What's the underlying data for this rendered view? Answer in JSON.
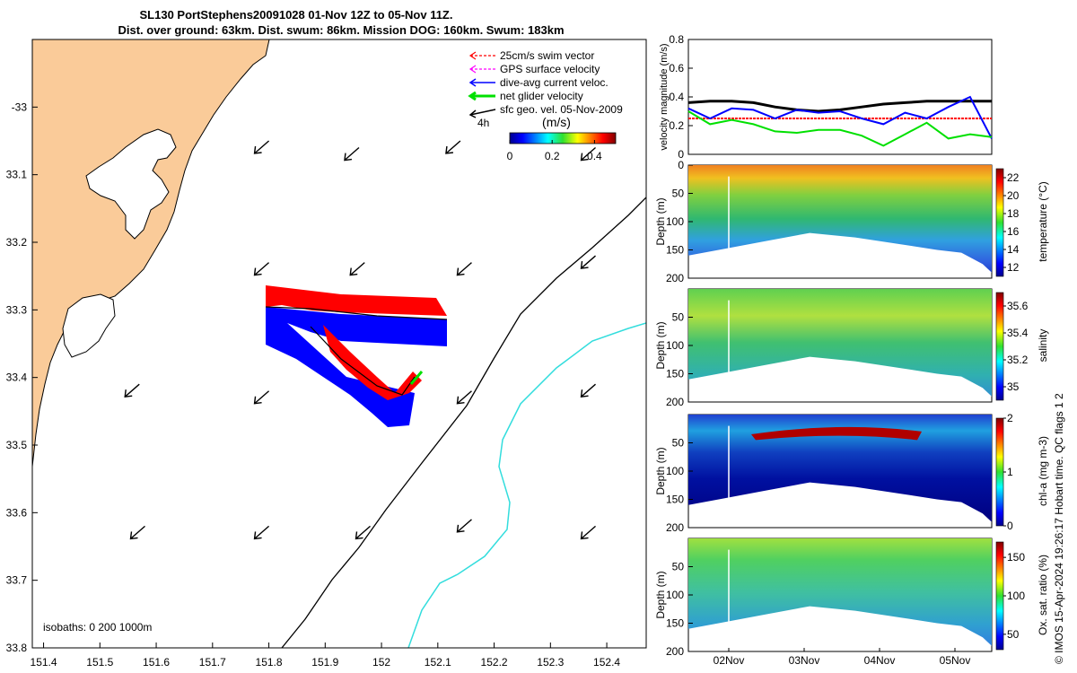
{
  "title": {
    "line1": "SL130 PortStephens20091028 01-Nov 12Z to 05-Nov 11Z.",
    "line2": "Dist. over ground: 63km. Dist. swum: 86km. Mission DOG: 160km. Swum: 183km"
  },
  "colors": {
    "land": "#FACB99",
    "swim_vector": "#ff0000",
    "gps_velocity": "#ff00ff",
    "dive_current": "#0000ff",
    "net_glider": "#00e000",
    "sfc_geo": "#000000",
    "isobath_200": "#000000",
    "isobath_1000": "#33dddd"
  },
  "chart_data": [
    {
      "type": "scatter",
      "name": "map",
      "xlabel": "",
      "ylabel": "",
      "xlim": [
        151.38,
        152.47
      ],
      "ylim": [
        -33.8,
        -32.9
      ],
      "x_ticks": [
        "151.4",
        "151.5",
        "151.6",
        "151.7",
        "151.8",
        "151.9",
        "152",
        "152.1",
        "152.2",
        "152.3",
        "152.4"
      ],
      "y_ticks": [
        "-33",
        "33.1",
        "33.2",
        "33.3",
        "33.4",
        "33.5",
        "33.6",
        "33.7",
        "33.8"
      ],
      "legend": {
        "placement": "top-right",
        "entries": [
          "25cm/s swim vector",
          "GPS surface velocity",
          "dive-avg current veloc.",
          "net glider velocity",
          "sfc geo. vel. 05-Nov-2009"
        ],
        "time_note": "4h"
      },
      "colorbar": {
        "label": "(m/s)",
        "ticks": [
          "0",
          "0.2",
          "0.4"
        ],
        "range": [
          0,
          0.5
        ]
      },
      "isobaths_label": "isobaths: 0   200  1000m",
      "surface_vectors": [
        {
          "lon": 151.8,
          "lat": -33.05
        },
        {
          "lon": 151.96,
          "lat": -33.06
        },
        {
          "lon": 152.14,
          "lat": -33.05
        },
        {
          "lon": 152.38,
          "lat": -33.06
        },
        {
          "lon": 151.8,
          "lat": -33.23
        },
        {
          "lon": 151.97,
          "lat": -33.23
        },
        {
          "lon": 152.16,
          "lat": -33.23
        },
        {
          "lon": 152.38,
          "lat": -33.22
        },
        {
          "lon": 151.57,
          "lat": -33.41
        },
        {
          "lon": 151.8,
          "lat": -33.42
        },
        {
          "lon": 152.16,
          "lat": -33.42
        },
        {
          "lon": 152.38,
          "lat": -33.41
        },
        {
          "lon": 151.58,
          "lat": -33.62
        },
        {
          "lon": 151.8,
          "lat": -33.62
        },
        {
          "lon": 151.98,
          "lat": -33.62
        },
        {
          "lon": 152.16,
          "lat": -33.61
        },
        {
          "lon": 152.38,
          "lat": -33.62
        }
      ]
    },
    {
      "type": "line",
      "name": "velocity magnitude",
      "ylabel": "velocity magnitude (m/s)",
      "ylim": [
        0,
        0.8
      ],
      "y_ticks": [
        "0",
        "0.2",
        "0.4",
        "0.6",
        "0.8"
      ],
      "series": [
        {
          "values": [
            0.36,
            0.37,
            0.37,
            0.36,
            0.33,
            0.31,
            0.3,
            0.31,
            0.33,
            0.35,
            0.36,
            0.37,
            0.37,
            0.37,
            0.37
          ]
        },
        {
          "values": [
            0.25,
            0.25,
            0.25,
            0.25,
            0.25,
            0.25,
            0.25,
            0.25,
            0.25,
            0.25,
            0.25,
            0.25,
            0.25,
            0.25,
            0.25
          ]
        },
        {
          "values": [
            0.32,
            0.25,
            0.32,
            0.31,
            0.25,
            0.31,
            0.29,
            0.3,
            0.25,
            0.21,
            0.29,
            0.25,
            0.33,
            0.4,
            0.11
          ]
        },
        {
          "values": [
            0.3,
            0.21,
            0.24,
            0.21,
            0.16,
            0.15,
            0.17,
            0.17,
            0.13,
            0.06,
            0.14,
            0.22,
            0.11,
            0.14,
            0.12
          ]
        }
      ]
    },
    {
      "type": "heatmap",
      "name": "temperature",
      "ylabel": "Depth (m)",
      "clabel": "temperature (°C)",
      "ylim": [
        200,
        0
      ],
      "y_ticks": [
        "0",
        "50",
        "100",
        "150",
        "200"
      ],
      "c_ticks": [
        "12",
        "14",
        "16",
        "18",
        "20",
        "22"
      ],
      "crange": [
        11,
        23
      ]
    },
    {
      "type": "heatmap",
      "name": "salinity",
      "ylabel": "Depth (m)",
      "clabel": "salinity",
      "ylim": [
        200,
        0
      ],
      "y_ticks": [
        "50",
        "100",
        "150",
        "200"
      ],
      "c_ticks": [
        "35",
        "35.2",
        "35.4",
        "35.6"
      ],
      "crange": [
        34.9,
        35.7
      ]
    },
    {
      "type": "heatmap",
      "name": "chlorophyll",
      "ylabel": "Depth (m)",
      "clabel": "chl-a (mg m-3)",
      "ylim": [
        200,
        0
      ],
      "y_ticks": [
        "50",
        "100",
        "150",
        "200"
      ],
      "c_ticks": [
        "0",
        "1",
        "2"
      ],
      "crange": [
        0,
        2
      ]
    },
    {
      "type": "heatmap",
      "name": "oxygen",
      "ylabel": "Depth (m)",
      "clabel": "Ox. sat. ratio (%)",
      "ylim": [
        200,
        0
      ],
      "y_ticks": [
        "50",
        "100",
        "150",
        "200"
      ],
      "c_ticks": [
        "50",
        "100",
        "150"
      ],
      "crange": [
        30,
        170
      ],
      "x_ticks": [
        "02Nov",
        "03Nov",
        "04Nov",
        "05Nov"
      ]
    }
  ],
  "side_note": "© IMOS 15-Apr-2024 19:26:17 Hobart time. QC flags 1  2"
}
